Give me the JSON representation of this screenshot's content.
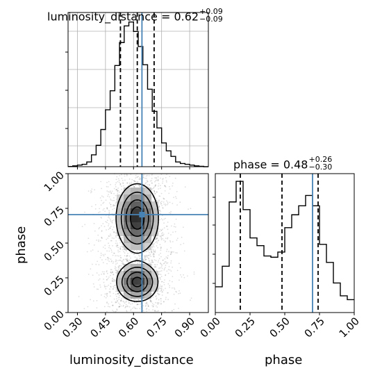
{
  "chart_data": [
    {
      "type": "histogram",
      "panel": "luminosity_distance marginal",
      "title": {
        "prefix": "luminosity_distance = 0.62",
        "upper": "+0.09",
        "lower": "−0.09"
      },
      "xlim": [
        0.25,
        1.0
      ],
      "bin_edges": [
        0.25,
        0.275,
        0.3,
        0.325,
        0.35,
        0.375,
        0.4,
        0.425,
        0.45,
        0.475,
        0.5,
        0.525,
        0.55,
        0.575,
        0.6,
        0.625,
        0.65,
        0.675,
        0.7,
        0.725,
        0.75,
        0.775,
        0.8,
        0.825,
        0.85,
        0.875,
        0.9,
        0.925,
        0.95,
        0.975,
        1.0
      ],
      "counts": [
        0.3,
        1,
        2,
        3,
        6,
        15,
        27,
        47,
        72,
        96,
        128,
        157,
        178,
        183,
        171,
        152,
        129,
        98,
        70,
        49,
        30,
        20,
        13,
        6,
        4,
        3,
        2,
        1,
        0.5,
        0
      ],
      "ymax": 195,
      "quantile_lines": [
        0.53,
        0.62,
        0.71
      ],
      "truth": 0.645,
      "line_color": "#000000",
      "truth_color": "#4682b4"
    },
    {
      "type": "contour2d",
      "panel": "phase vs luminosity_distance",
      "xlabel": "luminosity_distance",
      "ylabel": "phase",
      "xlim": [
        0.25,
        1.0
      ],
      "ylim": [
        0.0,
        1.0
      ],
      "x_ticks": [
        "0.30",
        "0.45",
        "0.60",
        "0.75",
        "0.90"
      ],
      "x_tick_values": [
        0.3,
        0.45,
        0.6,
        0.75,
        0.9
      ],
      "y_ticks": [
        "0.00",
        "0.25",
        "0.50",
        "0.75",
        "1.00"
      ],
      "y_tick_values": [
        0.0,
        0.25,
        0.5,
        0.75,
        1.0
      ],
      "density_modes": [
        {
          "x": 0.62,
          "y": 0.68,
          "sx": 0.055,
          "sy": 0.12,
          "w": 1.0
        },
        {
          "x": 0.62,
          "y": 0.22,
          "sx": 0.055,
          "sy": 0.07,
          "w": 0.9
        }
      ],
      "contour_levels": [
        0.12,
        0.3,
        0.55,
        0.8
      ],
      "scatter_point_count": 2600,
      "truth": {
        "x": 0.645,
        "y": 0.705
      },
      "truth_color": "#4682b4"
    },
    {
      "type": "histogram",
      "panel": "phase marginal",
      "title": {
        "prefix": "phase = 0.48",
        "upper": "+0.26",
        "lower": "−0.30"
      },
      "xlim": [
        0.0,
        1.0
      ],
      "xlabel": "phase",
      "x_ticks": [
        "0.00",
        "0.25",
        "0.50",
        "0.75",
        "1.00"
      ],
      "x_tick_values": [
        0.0,
        0.25,
        0.5,
        0.75,
        1.0
      ],
      "bin_edges": [
        0.0,
        0.05,
        0.1,
        0.15,
        0.2,
        0.25,
        0.3,
        0.35,
        0.4,
        0.45,
        0.5,
        0.55,
        0.6,
        0.65,
        0.7,
        0.75,
        0.8,
        0.85,
        0.9,
        0.95,
        1.0
      ],
      "counts": [
        0.2,
        0.36,
        0.86,
        1.02,
        0.8,
        0.58,
        0.52,
        0.44,
        0.43,
        0.47,
        0.66,
        0.76,
        0.83,
        0.91,
        0.83,
        0.53,
        0.39,
        0.23,
        0.13,
        0.1
      ],
      "ymax": 1.08,
      "quantile_lines": [
        0.18,
        0.48,
        0.74
      ],
      "truth": 0.7,
      "line_color": "#000000",
      "truth_color": "#4682b4"
    }
  ]
}
